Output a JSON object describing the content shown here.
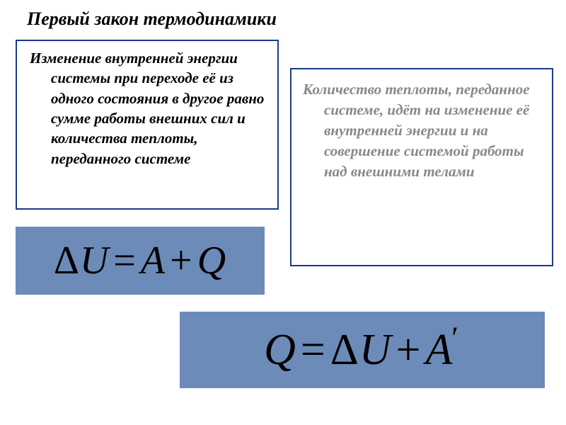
{
  "title": "Первый закон термодинамики",
  "left_box": {
    "text": "Изменение внутренней энергии системы при переходе её из одного состояния в другое равно сумме работы внешних сил и количества теплоты, переданного системе",
    "border_color": "#1a3a8a",
    "text_color": "#000000",
    "font_size": 21,
    "font_style": "italic bold"
  },
  "right_box": {
    "text": "Количество теплоты, переданное системе, идёт на изменение её внутренней энергии и на совершение системой работы над внешними телами",
    "border_color": "#1a3a8a",
    "text_color": "#888888",
    "font_size": 21,
    "font_style": "italic bold"
  },
  "formula1": {
    "display": "ΔU = A + Q",
    "delta": "Δ",
    "U": "U",
    "eq": "=",
    "A": "A",
    "plus": "+",
    "Q": "Q",
    "background": "#6d8bb8",
    "font_size": 56
  },
  "formula2": {
    "display": "Q = ΔU + A′",
    "Q": "Q",
    "eq": "=",
    "delta": "Δ",
    "U": "U",
    "plus": "+",
    "A": "A",
    "prime": "′",
    "background": "#6d8bb8",
    "font_size": 62
  },
  "colors": {
    "background": "#ffffff",
    "box_bg": "#6d8bb8",
    "border": "#1a3a8a",
    "muted_text": "#888888"
  }
}
